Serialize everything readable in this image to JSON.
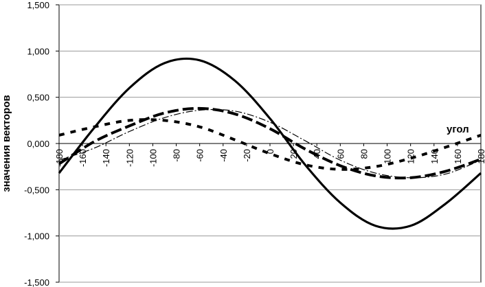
{
  "chart_data": {
    "type": "line",
    "ylabel": "значения векторов",
    "annotation": "угол",
    "ylim": [
      -1.5,
      1.5
    ],
    "y_ticks": [
      "1,500",
      "1,000",
      "0,500",
      "0,000",
      "-0,500",
      "-1,000",
      "-1,500"
    ],
    "x_range": [
      -180,
      180
    ],
    "x_ticks": [
      "-180",
      "-160",
      "-140",
      "-120",
      "-100",
      "-80",
      "-60",
      "-40",
      "-20",
      "0",
      "20",
      "40",
      "60",
      "80",
      "100",
      "120",
      "140",
      "160",
      "180"
    ],
    "grid": "horizontal",
    "legend": "none",
    "series": [
      {
        "style": "solid-thick",
        "x": [
          -180,
          -150,
          -120,
          -90,
          -60,
          -30,
          0,
          30,
          60,
          90,
          120,
          150,
          180
        ],
        "y": [
          -0.32,
          0.17,
          0.6,
          0.87,
          0.9,
          0.68,
          0.27,
          -0.23,
          -0.64,
          -0.89,
          -0.89,
          -0.65,
          -0.32
        ]
      },
      {
        "style": "dashed-thick",
        "x": [
          -180,
          -150,
          -120,
          -90,
          -60,
          -30,
          0,
          30,
          60,
          90,
          120,
          150,
          180
        ],
        "y": [
          -0.22,
          0.02,
          0.19,
          0.33,
          0.38,
          0.32,
          0.16,
          -0.06,
          -0.24,
          -0.35,
          -0.37,
          -0.3,
          -0.17
        ]
      },
      {
        "style": "dashdot-thin",
        "x": [
          -180,
          -150,
          -120,
          -90,
          -60,
          -30,
          0,
          30,
          60,
          90,
          120,
          150,
          180
        ],
        "y": [
          -0.18,
          -0.05,
          0.13,
          0.28,
          0.36,
          0.35,
          0.23,
          0.03,
          -0.18,
          -0.32,
          -0.37,
          -0.33,
          -0.18
        ]
      },
      {
        "style": "dotted-thick",
        "x": [
          -180,
          -150,
          -120,
          -90,
          -60,
          -30,
          0,
          30,
          60,
          90,
          120,
          150,
          180
        ],
        "y": [
          0.09,
          0.18,
          0.25,
          0.25,
          0.18,
          0.04,
          -0.11,
          -0.23,
          -0.28,
          -0.25,
          -0.16,
          -0.04,
          0.09
        ]
      }
    ]
  }
}
